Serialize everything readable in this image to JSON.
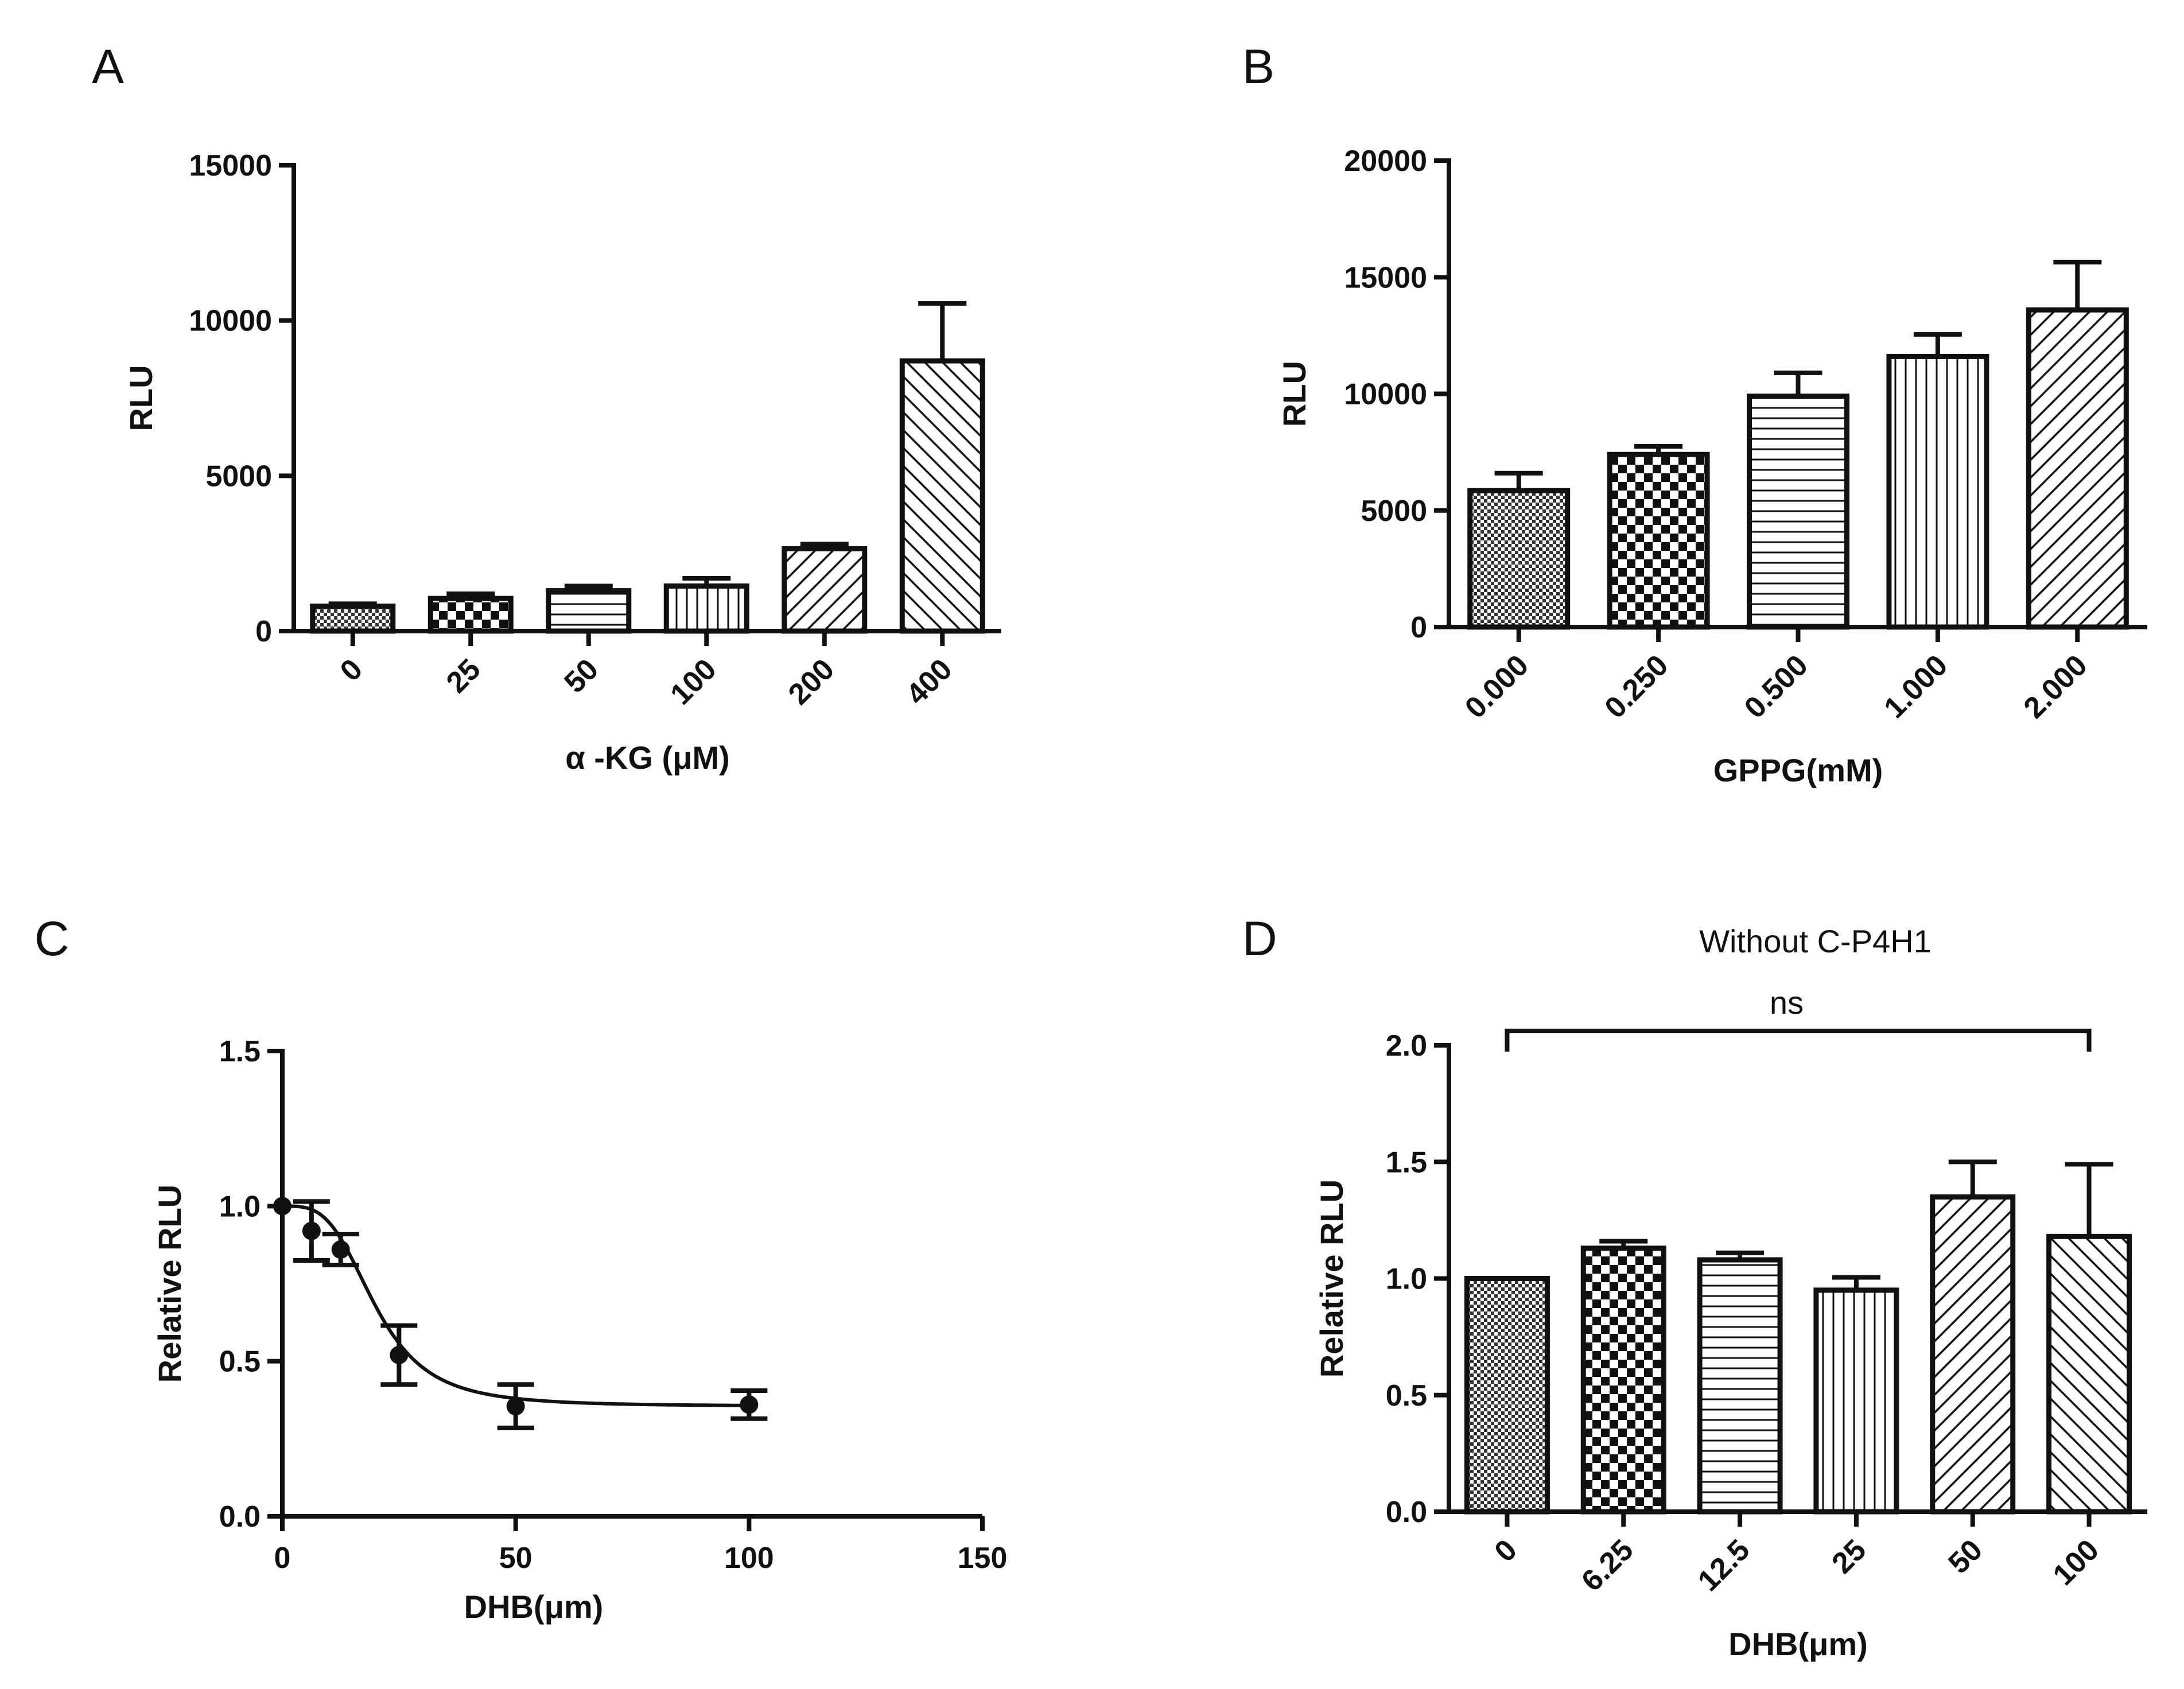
{
  "chart_data": [
    {
      "panel": "A",
      "type": "bar",
      "title": "",
      "xlabel": "α -KG (μM)",
      "ylabel": "RLU",
      "ylim": [
        0,
        15000
      ],
      "yticks": [
        0,
        5000,
        10000,
        15000
      ],
      "categories": [
        "0",
        "25",
        "50",
        "100",
        "200",
        "400"
      ],
      "values": [
        800,
        1050,
        1300,
        1450,
        2650,
        8700
      ],
      "errors": [
        80,
        150,
        150,
        250,
        150,
        1850
      ],
      "patterns": [
        "fine-dots",
        "checker",
        "horizontal",
        "vertical",
        "diag-right",
        "diag-left"
      ]
    },
    {
      "panel": "B",
      "type": "bar",
      "title": "",
      "xlabel": "GPPG(mM)",
      "ylabel": "RLU",
      "ylim": [
        0,
        20000
      ],
      "yticks": [
        0,
        5000,
        10000,
        15000,
        20000
      ],
      "categories": [
        "0.000",
        "0.250",
        "0.500",
        "1.000",
        "2.000"
      ],
      "values": [
        5850,
        7400,
        9900,
        11600,
        13600
      ],
      "errors": [
        750,
        350,
        1000,
        950,
        2050
      ],
      "patterns": [
        "fine-dots",
        "checker",
        "horizontal",
        "vertical",
        "diag-right"
      ]
    },
    {
      "panel": "C",
      "type": "scatter",
      "title": "",
      "xlabel": "DHB(μm)",
      "ylabel": "Relative RLU",
      "xlim": [
        0,
        150
      ],
      "ylim": [
        0,
        1.5
      ],
      "xticks": [
        0,
        50,
        100,
        150
      ],
      "yticks": [
        0.0,
        0.5,
        1.0,
        1.5
      ],
      "points": [
        {
          "x": 0,
          "y": 1.0,
          "err": 0
        },
        {
          "x": 6.25,
          "y": 0.92,
          "err": 0.095
        },
        {
          "x": 12.5,
          "y": 0.86,
          "err": 0.05
        },
        {
          "x": 25,
          "y": 0.52,
          "err": 0.095
        },
        {
          "x": 50,
          "y": 0.355,
          "err": 0.07
        },
        {
          "x": 100,
          "y": 0.36,
          "err": 0.045
        }
      ],
      "fit": {
        "model": "sigmoidal dose-response",
        "top": 1.0,
        "bottom": 0.355,
        "ic50": 20,
        "hill": 3.5
      }
    },
    {
      "panel": "D",
      "type": "bar",
      "title": "Without C-P4H1",
      "xlabel": "DHB(μm)",
      "ylabel": "Relative RLU",
      "ylim": [
        0,
        2.0
      ],
      "yticks": [
        0.0,
        0.5,
        1.0,
        1.5,
        2.0
      ],
      "categories": [
        "0",
        "6.25",
        "12.5",
        "25",
        "50",
        "100"
      ],
      "values": [
        1.0,
        1.13,
        1.08,
        0.95,
        1.35,
        1.18
      ],
      "errors": [
        0,
        0.03,
        0.03,
        0.055,
        0.15,
        0.31
      ],
      "patterns": [
        "fine-dots",
        "checker",
        "horizontal",
        "vertical",
        "diag-right",
        "diag-left"
      ],
      "annotation": {
        "text": "ns",
        "from": 0,
        "to": 5
      }
    }
  ],
  "panels": {
    "A": {
      "letter": "A"
    },
    "B": {
      "letter": "B"
    },
    "C": {
      "letter": "C"
    },
    "D": {
      "letter": "D"
    }
  }
}
